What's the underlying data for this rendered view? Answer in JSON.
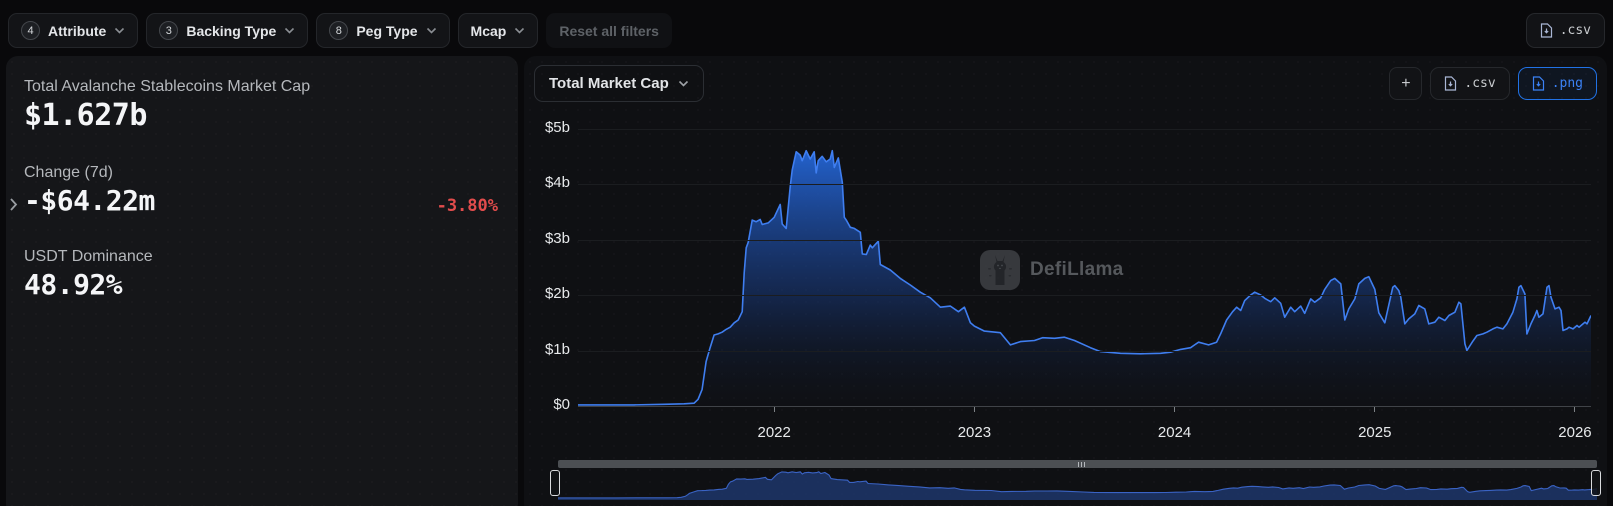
{
  "filter_bar": {
    "filters": [
      {
        "badge": "4",
        "label": "Attribute"
      },
      {
        "badge": "3",
        "label": "Backing Type"
      },
      {
        "badge": "8",
        "label": "Peg Type"
      },
      {
        "badge": "",
        "label": "Mcap"
      }
    ],
    "reset_label": "Reset all filters",
    "csv_label": ".csv"
  },
  "stats": {
    "mcap_label": "Total Avalanche Stablecoins Market Cap",
    "mcap_value": "$1.627b",
    "change_label": "Change (7d)",
    "change_value": "-$64.22m",
    "change_pct": "-3.80%",
    "dominance_label": "USDT Dominance",
    "dominance_value": "48.92%"
  },
  "chart_header": {
    "series_selector_label": "Total Market Cap",
    "add_label": "+",
    "csv_label": ".csv",
    "png_label": ".png"
  },
  "watermark_text": "DefiLlama",
  "colors": {
    "accent_blue": "#2172e5",
    "line_blue": "#3f7ef0",
    "negative_red": "#e24c4c",
    "nav_fill": "#1d3466"
  },
  "chart_data": {
    "type": "area",
    "title": "Total Market Cap",
    "unit": "USD billions",
    "xlim": [
      2021.02,
      2026.08
    ],
    "ylim": [
      0,
      5.3
    ],
    "x_ticks": [
      "2022",
      "2023",
      "2024",
      "2025",
      "2026"
    ],
    "x_tick_values": [
      2022,
      2023,
      2024,
      2025,
      2026
    ],
    "ylabel_ticks": [
      "$5b",
      "$4b",
      "$3b",
      "$2b",
      "$1b",
      "$0"
    ],
    "ytick_values": [
      5,
      4,
      3,
      2,
      1,
      0
    ],
    "grid": true,
    "legend": false,
    "points": [
      [
        2021.02,
        0.02
      ],
      [
        2021.15,
        0.02
      ],
      [
        2021.3,
        0.02
      ],
      [
        2021.45,
        0.03
      ],
      [
        2021.55,
        0.04
      ],
      [
        2021.6,
        0.05
      ],
      [
        2021.62,
        0.12
      ],
      [
        2021.64,
        0.3
      ],
      [
        2021.65,
        0.55
      ],
      [
        2021.66,
        0.8
      ],
      [
        2021.68,
        1.05
      ],
      [
        2021.7,
        1.28
      ],
      [
        2021.72,
        1.3
      ],
      [
        2021.74,
        1.33
      ],
      [
        2021.76,
        1.38
      ],
      [
        2021.78,
        1.42
      ],
      [
        2021.8,
        1.5
      ],
      [
        2021.82,
        1.55
      ],
      [
        2021.84,
        1.7
      ],
      [
        2021.85,
        2.4
      ],
      [
        2021.86,
        2.85
      ],
      [
        2021.87,
        2.95
      ],
      [
        2021.89,
        3.35
      ],
      [
        2021.91,
        3.32
      ],
      [
        2021.93,
        3.36
      ],
      [
        2021.94,
        3.27
      ],
      [
        2021.97,
        3.3
      ],
      [
        2022.0,
        3.4
      ],
      [
        2022.03,
        3.63
      ],
      [
        2022.04,
        3.28
      ],
      [
        2022.06,
        3.2
      ],
      [
        2022.08,
        3.95
      ],
      [
        2022.09,
        4.25
      ],
      [
        2022.11,
        4.58
      ],
      [
        2022.13,
        4.52
      ],
      [
        2022.14,
        4.42
      ],
      [
        2022.16,
        4.6
      ],
      [
        2022.18,
        4.45
      ],
      [
        2022.2,
        4.58
      ],
      [
        2022.21,
        4.2
      ],
      [
        2022.22,
        4.42
      ],
      [
        2022.24,
        4.5
      ],
      [
        2022.26,
        4.4
      ],
      [
        2022.28,
        4.45
      ],
      [
        2022.29,
        4.6
      ],
      [
        2022.3,
        4.3
      ],
      [
        2022.32,
        4.47
      ],
      [
        2022.34,
        4.03
      ],
      [
        2022.35,
        3.4
      ],
      [
        2022.36,
        3.35
      ],
      [
        2022.38,
        3.22
      ],
      [
        2022.4,
        3.2
      ],
      [
        2022.43,
        3.13
      ],
      [
        2022.44,
        2.74
      ],
      [
        2022.46,
        2.73
      ],
      [
        2022.48,
        2.9
      ],
      [
        2022.49,
        2.85
      ],
      [
        2022.52,
        2.97
      ],
      [
        2022.53,
        2.55
      ],
      [
        2022.58,
        2.45
      ],
      [
        2022.63,
        2.3
      ],
      [
        2022.68,
        2.18
      ],
      [
        2022.73,
        2.05
      ],
      [
        2022.78,
        1.95
      ],
      [
        2022.83,
        1.78
      ],
      [
        2022.88,
        1.8
      ],
      [
        2022.92,
        1.7
      ],
      [
        2022.95,
        1.78
      ],
      [
        2022.98,
        1.5
      ],
      [
        2023.0,
        1.44
      ],
      [
        2023.05,
        1.35
      ],
      [
        2023.13,
        1.32
      ],
      [
        2023.18,
        1.1
      ],
      [
        2023.23,
        1.16
      ],
      [
        2023.3,
        1.18
      ],
      [
        2023.34,
        1.23
      ],
      [
        2023.4,
        1.22
      ],
      [
        2023.45,
        1.24
      ],
      [
        2023.5,
        1.18
      ],
      [
        2023.58,
        1.05
      ],
      [
        2023.63,
        0.98
      ],
      [
        2023.73,
        0.95
      ],
      [
        2023.83,
        0.94
      ],
      [
        2023.93,
        0.95
      ],
      [
        2023.98,
        0.97
      ],
      [
        2024.03,
        1.02
      ],
      [
        2024.08,
        1.05
      ],
      [
        2024.1,
        1.1
      ],
      [
        2024.12,
        1.15
      ],
      [
        2024.17,
        1.1
      ],
      [
        2024.21,
        1.15
      ],
      [
        2024.23,
        1.3
      ],
      [
        2024.26,
        1.55
      ],
      [
        2024.29,
        1.7
      ],
      [
        2024.31,
        1.78
      ],
      [
        2024.33,
        1.72
      ],
      [
        2024.35,
        1.9
      ],
      [
        2024.38,
        2.0
      ],
      [
        2024.4,
        2.05
      ],
      [
        2024.43,
        2.0
      ],
      [
        2024.45,
        1.94
      ],
      [
        2024.48,
        1.88
      ],
      [
        2024.5,
        1.95
      ],
      [
        2024.53,
        1.85
      ],
      [
        2024.55,
        1.6
      ],
      [
        2024.58,
        1.78
      ],
      [
        2024.6,
        1.7
      ],
      [
        2024.63,
        1.8
      ],
      [
        2024.65,
        1.67
      ],
      [
        2024.68,
        1.93
      ],
      [
        2024.7,
        1.87
      ],
      [
        2024.73,
        1.95
      ],
      [
        2024.75,
        2.1
      ],
      [
        2024.78,
        2.26
      ],
      [
        2024.8,
        2.3
      ],
      [
        2024.83,
        2.2
      ],
      [
        2024.85,
        1.55
      ],
      [
        2024.87,
        1.75
      ],
      [
        2024.9,
        1.93
      ],
      [
        2024.92,
        2.2
      ],
      [
        2024.95,
        2.3
      ],
      [
        2024.97,
        2.33
      ],
      [
        2025.0,
        2.1
      ],
      [
        2025.02,
        1.68
      ],
      [
        2025.05,
        1.5
      ],
      [
        2025.09,
        2.14
      ],
      [
        2025.1,
        2.17
      ],
      [
        2025.12,
        2.08
      ],
      [
        2025.13,
        1.96
      ],
      [
        2025.15,
        1.48
      ],
      [
        2025.17,
        1.57
      ],
      [
        2025.2,
        1.66
      ],
      [
        2025.22,
        1.81
      ],
      [
        2025.25,
        1.75
      ],
      [
        2025.27,
        1.48
      ],
      [
        2025.3,
        1.51
      ],
      [
        2025.32,
        1.6
      ],
      [
        2025.35,
        1.54
      ],
      [
        2025.37,
        1.63
      ],
      [
        2025.4,
        1.69
      ],
      [
        2025.42,
        1.87
      ],
      [
        2025.43,
        1.84
      ],
      [
        2025.45,
        1.12
      ],
      [
        2025.46,
        1.0
      ],
      [
        2025.49,
        1.17
      ],
      [
        2025.51,
        1.27
      ],
      [
        2025.54,
        1.3
      ],
      [
        2025.56,
        1.33
      ],
      [
        2025.59,
        1.39
      ],
      [
        2025.61,
        1.42
      ],
      [
        2025.64,
        1.39
      ],
      [
        2025.66,
        1.48
      ],
      [
        2025.69,
        1.69
      ],
      [
        2025.71,
        1.93
      ],
      [
        2025.72,
        2.14
      ],
      [
        2025.73,
        2.17
      ],
      [
        2025.75,
        2.02
      ],
      [
        2025.76,
        1.3
      ],
      [
        2025.78,
        1.48
      ],
      [
        2025.8,
        1.63
      ],
      [
        2025.81,
        1.72
      ],
      [
        2025.82,
        1.6
      ],
      [
        2025.84,
        1.66
      ],
      [
        2025.86,
        2.14
      ],
      [
        2025.87,
        2.17
      ],
      [
        2025.88,
        1.96
      ],
      [
        2025.9,
        1.75
      ],
      [
        2025.92,
        1.78
      ],
      [
        2025.93,
        1.72
      ],
      [
        2025.94,
        1.36
      ],
      [
        2025.96,
        1.39
      ],
      [
        2025.97,
        1.42
      ],
      [
        2025.99,
        1.39
      ],
      [
        2026.01,
        1.45
      ],
      [
        2026.02,
        1.42
      ],
      [
        2026.04,
        1.48
      ],
      [
        2026.05,
        1.51
      ],
      [
        2026.06,
        1.48
      ],
      [
        2026.08,
        1.63
      ]
    ]
  }
}
